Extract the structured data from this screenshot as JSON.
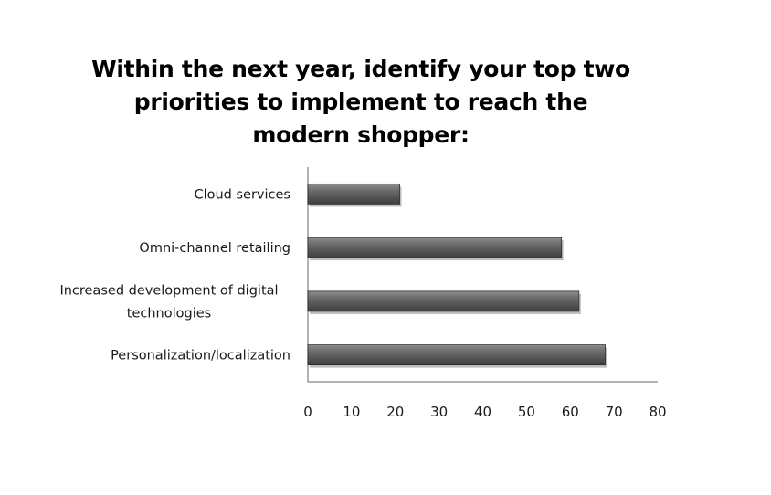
{
  "chart_data": {
    "type": "bar",
    "orientation": "horizontal",
    "title": "Within the next year, identify your top two priorities to implement to reach the modern shopper:",
    "categories": [
      "Cloud services",
      "Omni-channel retailing",
      "Increased development of digital technologies",
      "Personalization/localization"
    ],
    "values": [
      21,
      58,
      62,
      68
    ],
    "xlabel": "",
    "ylabel": "",
    "xlim": [
      0,
      80
    ],
    "x_ticks": [
      0,
      10,
      20,
      30,
      40,
      50,
      60,
      70,
      80
    ],
    "grid": false,
    "legend": "none",
    "bar_color": "#5f5f5f"
  }
}
